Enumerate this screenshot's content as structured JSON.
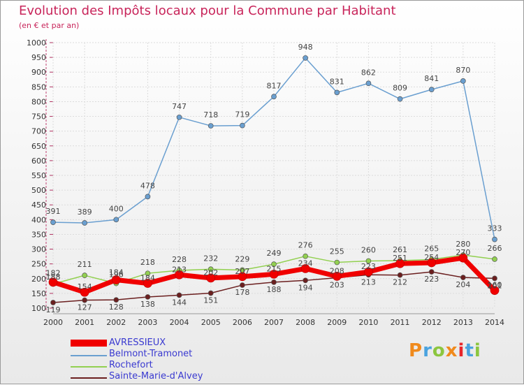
{
  "title": "Evolution des Impôts locaux pour la Commune par Habitant",
  "subtitle": "(en € et par an)",
  "logo": {
    "text": "Proxiti",
    "colors": [
      "#f08a1c",
      "#4aa3df",
      "#8cc63f",
      "#f08a1c",
      "#e8262b",
      "#4aa3df",
      "#8cc63f"
    ]
  },
  "chart_data": {
    "type": "line",
    "title": "Evolution des Impôts locaux pour la Commune par Habitant",
    "ylabel": "(en € et par an)",
    "xlabel": "",
    "ylim": [
      100,
      1000
    ],
    "yticks": [
      100,
      150,
      200,
      250,
      300,
      350,
      400,
      450,
      500,
      550,
      600,
      650,
      700,
      750,
      800,
      850,
      900,
      950,
      1000
    ],
    "categories": [
      "2000",
      "2001",
      "2002",
      "2003",
      "2004",
      "2005",
      "2006",
      "2007",
      "2008",
      "2009",
      "2010",
      "2011",
      "2012",
      "2013",
      "2014"
    ],
    "series": [
      {
        "name": "Sainte-Marie-d'Alvey",
        "color": "#6b1f1f",
        "values": [
          119,
          127,
          128,
          138,
          144,
          151,
          178,
          188,
          194,
          203,
          213,
          212,
          223,
          204,
          201
        ]
      },
      {
        "name": "Rochefort",
        "color": "#92d050",
        "values": [
          182,
          211,
          184,
          218,
          228,
          232,
          229,
          249,
          276,
          255,
          260,
          261,
          265,
          280,
          266
        ]
      },
      {
        "name": "Belmont-Tramonet",
        "color": "#6a9fd0",
        "values": [
          391,
          389,
          400,
          478,
          747,
          718,
          719,
          817,
          948,
          831,
          862,
          809,
          841,
          870,
          333
        ]
      },
      {
        "name": "AVRESSIEUX",
        "color": "#f00000",
        "values": [
          188,
          154,
          196,
          184,
          213,
          202,
          207,
          215,
          234,
          208,
          223,
          251,
          254,
          270,
          160
        ]
      }
    ],
    "legend": [
      "AVRESSIEUX",
      "Belmont-Tramonet",
      "Rochefort",
      "Sainte-Marie-d'Alvey"
    ],
    "grid": true
  }
}
